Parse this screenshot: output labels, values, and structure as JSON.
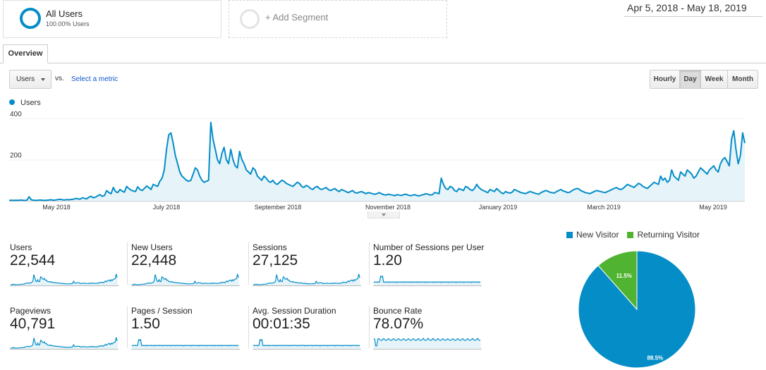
{
  "segments": {
    "all_users": {
      "title": "All Users",
      "subtitle": "100.00% Users"
    },
    "add_segment": {
      "label": "+ Add Segment"
    }
  },
  "date_range": "Apr 5, 2018 - May 18, 2019",
  "tabs": [
    {
      "label": "Overview",
      "active": true
    }
  ],
  "metric_selector": {
    "selected": "Users",
    "vs_label": "vs.",
    "select_metric_link": "Select a metric"
  },
  "time_buttons": [
    {
      "label": "Hourly",
      "active": false
    },
    {
      "label": "Day",
      "active": true
    },
    {
      "label": "Week",
      "active": false
    },
    {
      "label": "Month",
      "active": false
    }
  ],
  "colors": {
    "accent": "#058dc7",
    "area_fill": "#e6f4fa",
    "returning": "#50b432",
    "new": "#058dc7"
  },
  "chart_data": [
    {
      "type": "area",
      "series": [
        {
          "name": "Users",
          "values": [
            2,
            3,
            2,
            3,
            2,
            4,
            3,
            2,
            3,
            20,
            5,
            3,
            2,
            3,
            4,
            3,
            2,
            3,
            4,
            5,
            3,
            4,
            6,
            8,
            5,
            4,
            6,
            5,
            7,
            8,
            12,
            10,
            8,
            15,
            12,
            10,
            18,
            22,
            15,
            18,
            25,
            30,
            22,
            26,
            50,
            40,
            35,
            65,
            45,
            40,
            55,
            48,
            42,
            70,
            60,
            52,
            48,
            45,
            68,
            55,
            50,
            60,
            72,
            65,
            55,
            80,
            75,
            70,
            95,
            110,
            150,
            250,
            320,
            330,
            280,
            220,
            180,
            140,
            120,
            110,
            100,
            95,
            100,
            130,
            160,
            150,
            120,
            100,
            90,
            95,
            100,
            380,
            300,
            250,
            200,
            180,
            230,
            260,
            200,
            180,
            250,
            200,
            170,
            160,
            240,
            200,
            180,
            150,
            140,
            130,
            160,
            150,
            120,
            110,
            100,
            120,
            110,
            95,
            90,
            100,
            85,
            80,
            90,
            100,
            95,
            85,
            80,
            75,
            70,
            80,
            90,
            85,
            70,
            65,
            75,
            70,
            60,
            55,
            65,
            70,
            60,
            55,
            60,
            65,
            55,
            50,
            55,
            60,
            50,
            45,
            55,
            50,
            45,
            40,
            45,
            50,
            40,
            38,
            42,
            45,
            40,
            35,
            40,
            38,
            35,
            32,
            35,
            40,
            35,
            30,
            28,
            32,
            30,
            28,
            25,
            30,
            28,
            26,
            30,
            32,
            28,
            25,
            27,
            30,
            26,
            24,
            28,
            30,
            35,
            32,
            28,
            30,
            40,
            38,
            35,
            110,
            80,
            60,
            55,
            70,
            65,
            50,
            45,
            60,
            55,
            50,
            70,
            65,
            55,
            50,
            60,
            80,
            65,
            55,
            50,
            45,
            40,
            55,
            50,
            45,
            60,
            50,
            40,
            35,
            45,
            40,
            38,
            42,
            55,
            50,
            45,
            40,
            38,
            35,
            40,
            45,
            42,
            38,
            35,
            32,
            40,
            45,
            50,
            48,
            42,
            40,
            38,
            45,
            50,
            55,
            48,
            45,
            40,
            42,
            50,
            55,
            60,
            58,
            50,
            45,
            40,
            38,
            35,
            40,
            45,
            50,
            48,
            45,
            42,
            40,
            45,
            50,
            55,
            60,
            65,
            58,
            55,
            60,
            70,
            80,
            75,
            70,
            65,
            75,
            85,
            80,
            70,
            65,
            60,
            70,
            80,
            90,
            85,
            80,
            120,
            100,
            110,
            90,
            100,
            150,
            120,
            110,
            100,
            140,
            130,
            120,
            150,
            140,
            130,
            110,
            120,
            140,
            160,
            150,
            140,
            130,
            150,
            160,
            170,
            150,
            140,
            180,
            200,
            210,
            190,
            170,
            300,
            340,
            250,
            180,
            220,
            330,
            280
          ]
        }
      ],
      "yticks": [
        "400",
        "200"
      ],
      "ylim": [
        0,
        400
      ],
      "xticks": [
        "May 2018",
        "July 2018",
        "September 2018",
        "November 2018",
        "January 2019",
        "March 2019",
        "May 2019"
      ]
    },
    {
      "type": "pie",
      "series": [
        {
          "name": "New Visitor",
          "values": [
            88.5
          ],
          "label": "88.5%"
        },
        {
          "name": "Returning Visitor",
          "values": [
            11.5
          ],
          "label": "11.5%"
        }
      ]
    }
  ],
  "metrics": [
    {
      "label": "Users",
      "value": "22,544",
      "spark": "users"
    },
    {
      "label": "New Users",
      "value": "22,448",
      "spark": "users"
    },
    {
      "label": "Sessions",
      "value": "27,125",
      "spark": "users"
    },
    {
      "label": "Number of Sessions per User",
      "value": "1.20",
      "spark": "flat"
    },
    {
      "label": "Pageviews",
      "value": "40,791",
      "spark": "users"
    },
    {
      "label": "Pages / Session",
      "value": "1.50",
      "spark": "flat"
    },
    {
      "label": "Avg. Session Duration",
      "value": "00:01:35",
      "spark": "flat"
    },
    {
      "label": "Bounce Rate",
      "value": "78.07%",
      "spark": "high"
    }
  ]
}
